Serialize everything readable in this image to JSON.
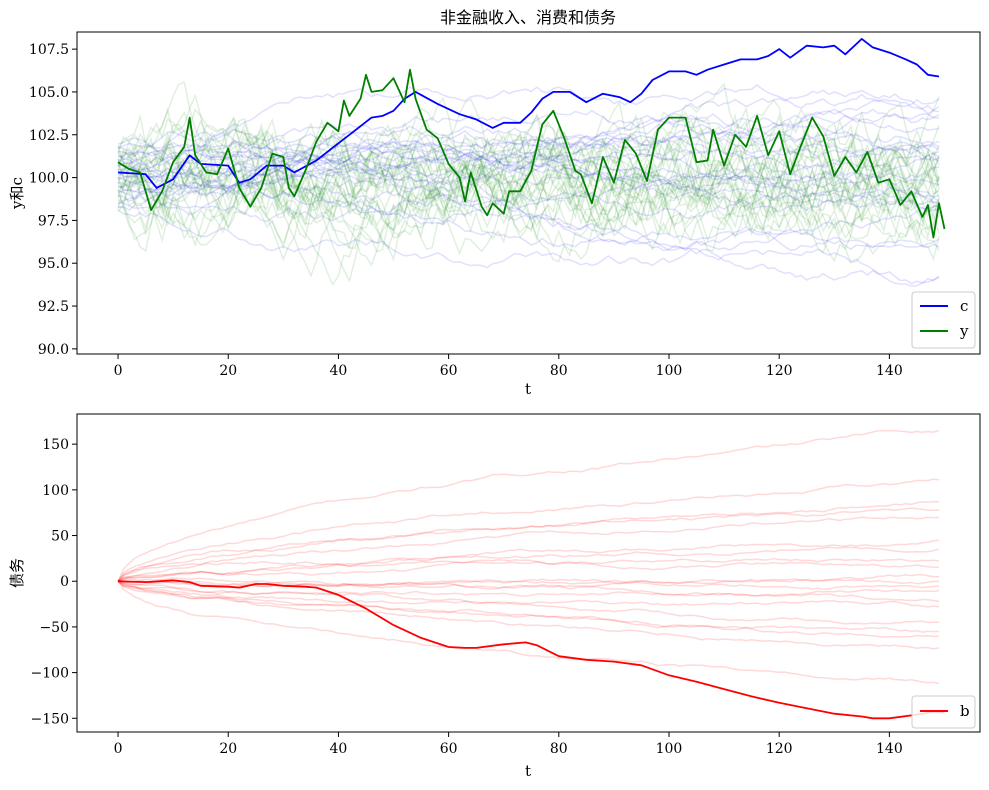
{
  "chart_data": [
    {
      "type": "line",
      "title": "非金融收入、消费和债务",
      "xlabel": "t",
      "ylabel": "y和c",
      "xlim": [
        -7.45,
        156.45
      ],
      "ylim": [
        89.7,
        108.5
      ],
      "xticks": [
        0,
        20,
        40,
        60,
        80,
        100,
        120,
        140
      ],
      "xtick_labels": [
        "0",
        "20",
        "40",
        "60",
        "80",
        "100",
        "120",
        "140"
      ],
      "yticks": [
        90.0,
        92.5,
        95.0,
        97.5,
        100.0,
        102.5,
        105.0,
        107.5
      ],
      "ytick_labels": [
        "90.0",
        "92.5",
        "95.0",
        "97.5",
        "100.0",
        "102.5",
        "105.0",
        "107.5"
      ],
      "grid": false,
      "legend_position": "bottom-right",
      "background_paths": {
        "c_count": 25,
        "y_count": 25,
        "c_color": "#0000ff",
        "y_color": "#008000",
        "alpha": 0.12,
        "range": [
          91.0,
          106.8
        ]
      },
      "series": [
        {
          "name": "c",
          "color": "#0000ff",
          "points": [
            [
              0,
              100.3
            ],
            [
              5,
              100.2
            ],
            [
              7,
              99.4
            ],
            [
              10,
              99.9
            ],
            [
              13,
              101.3
            ],
            [
              15,
              100.8
            ],
            [
              20,
              100.7
            ],
            [
              22,
              99.7
            ],
            [
              24,
              99.9
            ],
            [
              27,
              100.7
            ],
            [
              30,
              100.7
            ],
            [
              32,
              100.3
            ],
            [
              36,
              101.0
            ],
            [
              40,
              102.0
            ],
            [
              44,
              103.0
            ],
            [
              46,
              103.5
            ],
            [
              48,
              103.6
            ],
            [
              50,
              103.9
            ],
            [
              52,
              104.6
            ],
            [
              54,
              105.0
            ],
            [
              58,
              104.3
            ],
            [
              62,
              103.7
            ],
            [
              65,
              103.4
            ],
            [
              68,
              102.9
            ],
            [
              70,
              103.2
            ],
            [
              73,
              103.2
            ],
            [
              75,
              103.8
            ],
            [
              77,
              104.6
            ],
            [
              79,
              105.0
            ],
            [
              82,
              105.0
            ],
            [
              85,
              104.4
            ],
            [
              88,
              104.9
            ],
            [
              91,
              104.7
            ],
            [
              93,
              104.4
            ],
            [
              95,
              104.9
            ],
            [
              97,
              105.7
            ],
            [
              100,
              106.2
            ],
            [
              103,
              106.2
            ],
            [
              105,
              106.0
            ],
            [
              107,
              106.3
            ],
            [
              110,
              106.6
            ],
            [
              113,
              106.9
            ],
            [
              116,
              106.9
            ],
            [
              118,
              107.1
            ],
            [
              120,
              107.5
            ],
            [
              122,
              107.0
            ],
            [
              125,
              107.7
            ],
            [
              128,
              107.6
            ],
            [
              130,
              107.7
            ],
            [
              132,
              107.2
            ],
            [
              135,
              108.1
            ],
            [
              137,
              107.6
            ],
            [
              140,
              107.3
            ],
            [
              143,
              106.9
            ],
            [
              145,
              106.6
            ],
            [
              147,
              106.0
            ],
            [
              149,
              105.9
            ]
          ]
        },
        {
          "name": "y",
          "color": "#008000",
          "points": [
            [
              0,
              100.9
            ],
            [
              2,
              100.5
            ],
            [
              4,
              100.3
            ],
            [
              6,
              98.1
            ],
            [
              8,
              99.2
            ],
            [
              10,
              100.9
            ],
            [
              12,
              101.8
            ],
            [
              13,
              103.5
            ],
            [
              14,
              101.3
            ],
            [
              16,
              100.3
            ],
            [
              18,
              100.2
            ],
            [
              20,
              101.7
            ],
            [
              22,
              99.4
            ],
            [
              24,
              98.3
            ],
            [
              26,
              99.4
            ],
            [
              28,
              101.4
            ],
            [
              30,
              101.2
            ],
            [
              31,
              99.4
            ],
            [
              32,
              98.9
            ],
            [
              34,
              100.4
            ],
            [
              36,
              102.1
            ],
            [
              38,
              103.2
            ],
            [
              40,
              102.7
            ],
            [
              41,
              104.5
            ],
            [
              42,
              103.6
            ],
            [
              44,
              104.6
            ],
            [
              45,
              106.0
            ],
            [
              46,
              105.0
            ],
            [
              48,
              105.1
            ],
            [
              50,
              105.8
            ],
            [
              52,
              104.4
            ],
            [
              53,
              106.3
            ],
            [
              54,
              104.6
            ],
            [
              56,
              102.8
            ],
            [
              58,
              102.3
            ],
            [
              60,
              100.8
            ],
            [
              62,
              100.0
            ],
            [
              63,
              98.6
            ],
            [
              64,
              100.3
            ],
            [
              66,
              98.3
            ],
            [
              67,
              97.8
            ],
            [
              68,
              98.5
            ],
            [
              70,
              97.9
            ],
            [
              71,
              99.2
            ],
            [
              73,
              99.2
            ],
            [
              75,
              100.4
            ],
            [
              77,
              103.1
            ],
            [
              79,
              103.9
            ],
            [
              81,
              102.3
            ],
            [
              83,
              100.4
            ],
            [
              84,
              100.2
            ],
            [
              86,
              98.5
            ],
            [
              88,
              101.2
            ],
            [
              90,
              99.7
            ],
            [
              92,
              102.2
            ],
            [
              94,
              101.4
            ],
            [
              96,
              99.8
            ],
            [
              98,
              102.8
            ],
            [
              100,
              103.5
            ],
            [
              103,
              103.5
            ],
            [
              105,
              100.9
            ],
            [
              107,
              101.0
            ],
            [
              108,
              102.8
            ],
            [
              110,
              100.7
            ],
            [
              112,
              102.5
            ],
            [
              114,
              101.8
            ],
            [
              116,
              103.6
            ],
            [
              118,
              101.3
            ],
            [
              120,
              102.7
            ],
            [
              122,
              100.2
            ],
            [
              124,
              101.9
            ],
            [
              126,
              103.5
            ],
            [
              128,
              102.4
            ],
            [
              130,
              100.1
            ],
            [
              132,
              101.2
            ],
            [
              134,
              100.3
            ],
            [
              136,
              101.5
            ],
            [
              138,
              99.7
            ],
            [
              140,
              99.9
            ],
            [
              142,
              98.4
            ],
            [
              144,
              99.2
            ],
            [
              146,
              97.7
            ],
            [
              147,
              98.4
            ],
            [
              148,
              96.5
            ],
            [
              149,
              98.5
            ],
            [
              150,
              97.0
            ]
          ]
        }
      ]
    },
    {
      "type": "line",
      "title": "",
      "xlabel": "t",
      "ylabel": "债务",
      "xlim": [
        -7.45,
        156.45
      ],
      "ylim": [
        -165,
        183
      ],
      "xticks": [
        0,
        20,
        40,
        60,
        80,
        100,
        120,
        140
      ],
      "xtick_labels": [
        "0",
        "20",
        "40",
        "60",
        "80",
        "100",
        "120",
        "140"
      ],
      "yticks": [
        -150,
        -100,
        -50,
        0,
        50,
        100,
        150
      ],
      "ytick_labels": [
        "−150",
        "−100",
        "−50",
        "0",
        "50",
        "100",
        "150"
      ],
      "grid": false,
      "legend_position": "bottom-right",
      "background_paths": {
        "count": 20,
        "color": "#ff0000",
        "alpha": 0.15,
        "end_values": [
          165,
          111,
          87,
          78,
          70,
          45,
          35,
          22,
          15,
          5,
          0,
          -5,
          -10,
          -22,
          -28,
          -45,
          -55,
          -60,
          -73,
          -112
        ]
      },
      "series": [
        {
          "name": "b",
          "color": "#ff0000",
          "points": [
            [
              0,
              0
            ],
            [
              5,
              -1
            ],
            [
              10,
              1
            ],
            [
              13,
              -1
            ],
            [
              15,
              -5
            ],
            [
              20,
              -6
            ],
            [
              22,
              -7
            ],
            [
              25,
              -3
            ],
            [
              27,
              -3
            ],
            [
              30,
              -5
            ],
            [
              34,
              -6
            ],
            [
              36,
              -7
            ],
            [
              40,
              -15
            ],
            [
              45,
              -30
            ],
            [
              50,
              -48
            ],
            [
              55,
              -62
            ],
            [
              60,
              -72
            ],
            [
              63,
              -73
            ],
            [
              65,
              -73
            ],
            [
              70,
              -69
            ],
            [
              74,
              -67
            ],
            [
              76,
              -70
            ],
            [
              80,
              -82
            ],
            [
              85,
              -86
            ],
            [
              90,
              -88
            ],
            [
              95,
              -92
            ],
            [
              100,
              -103
            ],
            [
              105,
              -110
            ],
            [
              110,
              -118
            ],
            [
              115,
              -126
            ],
            [
              120,
              -133
            ],
            [
              125,
              -139
            ],
            [
              130,
              -145
            ],
            [
              135,
              -148
            ],
            [
              137,
              -150
            ],
            [
              140,
              -150
            ],
            [
              145,
              -146
            ],
            [
              148,
              -143
            ],
            [
              150,
              -144
            ]
          ]
        }
      ]
    }
  ]
}
